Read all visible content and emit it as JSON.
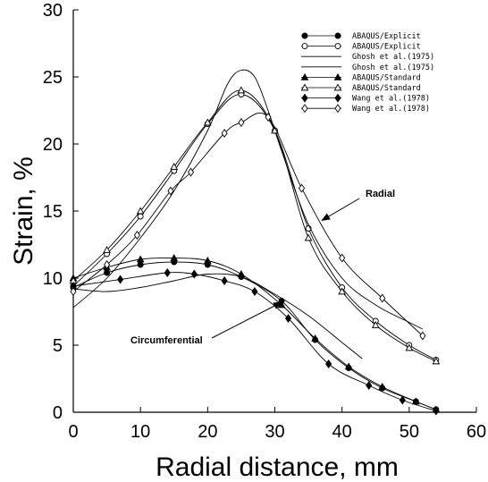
{
  "chart_data": {
    "type": "line",
    "xlabel": "Radial distance, mm",
    "ylabel": "Strain, %",
    "xlim": [
      0,
      60
    ],
    "ylim": [
      0,
      30
    ],
    "x_ticks": [
      "0",
      "10",
      "20",
      "30",
      "40",
      "50",
      "60"
    ],
    "y_ticks": [
      "0",
      "5",
      "10",
      "15",
      "20",
      "25",
      "30"
    ],
    "grid": false,
    "legend_position": "top-right",
    "annotations": [
      {
        "text": "Radial",
        "target": {
          "x": 37,
          "y": 14.3
        }
      },
      {
        "text": "Circumferential",
        "target": {
          "x": 31,
          "y": 8.2
        }
      }
    ],
    "series": [
      {
        "name": "ABAQUS/Explicit",
        "group": "circumferential",
        "marker": "filled-circle",
        "points": [
          [
            0,
            9.3
          ],
          [
            5,
            10.4
          ],
          [
            10,
            11.0
          ],
          [
            15,
            11.2
          ],
          [
            20,
            11.0
          ],
          [
            25,
            10.1
          ],
          [
            31,
            8.3
          ],
          [
            36,
            5.4
          ],
          [
            41,
            3.3
          ],
          [
            46,
            1.8
          ],
          [
            51,
            0.8
          ],
          [
            54,
            0.2
          ]
        ]
      },
      {
        "name": "ABAQUS/Explicit",
        "group": "radial",
        "marker": "open-circle",
        "points": [
          [
            0,
            9.4
          ],
          [
            5,
            11.8
          ],
          [
            10,
            14.6
          ],
          [
            15,
            18.0
          ],
          [
            20,
            21.5
          ],
          [
            25,
            23.7
          ],
          [
            30,
            21.0
          ],
          [
            35,
            13.7
          ],
          [
            40,
            9.3
          ],
          [
            45,
            6.8
          ],
          [
            50,
            5.0
          ],
          [
            54,
            3.9
          ]
        ]
      },
      {
        "name": "Ghosh et al.(1975)",
        "group": "circumferential",
        "marker": "none",
        "points": [
          [
            0,
            9.2
          ],
          [
            5,
            9.0
          ],
          [
            10,
            9.3
          ],
          [
            15,
            9.8
          ],
          [
            20,
            10.3
          ],
          [
            25,
            10.1
          ],
          [
            30,
            8.8
          ],
          [
            35,
            7.2
          ],
          [
            40,
            5.2
          ],
          [
            43,
            4.0
          ]
        ]
      },
      {
        "name": "Ghosh et al.(1975)",
        "group": "radial",
        "marker": "none",
        "points": [
          [
            0,
            7.8
          ],
          [
            5,
            10.0
          ],
          [
            10,
            13.0
          ],
          [
            15,
            16.5
          ],
          [
            20,
            21.0
          ],
          [
            23,
            24.5
          ],
          [
            25,
            25.5
          ],
          [
            27,
            25.0
          ],
          [
            29,
            22.5
          ],
          [
            31,
            19.5
          ],
          [
            35,
            14.0
          ],
          [
            40,
            10.0
          ],
          [
            45,
            8.0
          ],
          [
            50,
            6.7
          ],
          [
            52,
            6.2
          ]
        ]
      },
      {
        "name": "ABAQUS/Standard",
        "group": "circumferential",
        "marker": "filled-triangle",
        "points": [
          [
            0,
            10.0
          ],
          [
            5,
            10.8
          ],
          [
            10,
            11.4
          ],
          [
            15,
            11.5
          ],
          [
            20,
            11.3
          ],
          [
            25,
            10.3
          ],
          [
            31,
            8.0
          ],
          [
            36,
            5.5
          ],
          [
            41,
            3.4
          ],
          [
            46,
            1.9
          ],
          [
            51,
            0.8
          ],
          [
            54,
            0.2
          ]
        ]
      },
      {
        "name": "ABAQUS/Standard",
        "group": "radial",
        "marker": "open-triangle",
        "points": [
          [
            0,
            9.8
          ],
          [
            5,
            12.1
          ],
          [
            10,
            15.0
          ],
          [
            15,
            18.3
          ],
          [
            20,
            21.6
          ],
          [
            25,
            24.0
          ],
          [
            30,
            21.0
          ],
          [
            35,
            13.0
          ],
          [
            40,
            9.0
          ],
          [
            45,
            6.5
          ],
          [
            50,
            4.8
          ],
          [
            54,
            3.8
          ]
        ]
      },
      {
        "name": "Wang et al.(1978)",
        "group": "circumferential",
        "marker": "filled-diamond",
        "points": [
          [
            0,
            9.4
          ],
          [
            7,
            9.9
          ],
          [
            14,
            10.4
          ],
          [
            18,
            10.3
          ],
          [
            22.5,
            9.8
          ],
          [
            27,
            9.0
          ],
          [
            32,
            7.0
          ],
          [
            38,
            3.6
          ],
          [
            44,
            2.0
          ],
          [
            49,
            0.9
          ],
          [
            54,
            0.1
          ]
        ]
      },
      {
        "name": "Wang et al.(1978)",
        "group": "radial",
        "marker": "open-diamond",
        "points": [
          [
            0,
            9.0
          ],
          [
            5,
            11.0
          ],
          [
            9.5,
            13.2
          ],
          [
            14.5,
            16.5
          ],
          [
            17.5,
            17.9
          ],
          [
            22.5,
            20.8
          ],
          [
            25,
            21.6
          ],
          [
            29,
            22.0
          ],
          [
            34,
            16.7
          ],
          [
            40,
            11.5
          ],
          [
            46,
            8.5
          ],
          [
            52,
            5.7
          ]
        ]
      }
    ]
  }
}
